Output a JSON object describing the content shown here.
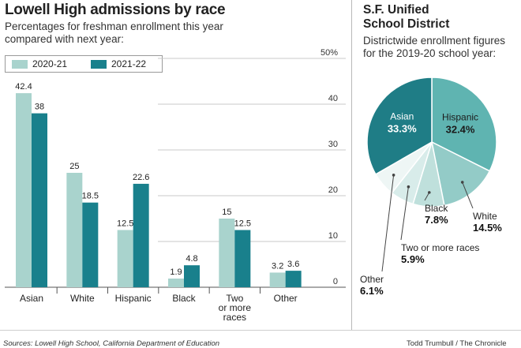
{
  "bar_chart": {
    "title": "Lowell High admissions by race",
    "subtitle_line1": "Percentages for freshman enrollment this year",
    "subtitle_line2": "compared with next year:"
  },
  "pie_chart": {
    "title_line1": "S.F. Unified",
    "title_line2": "School District",
    "subtitle_line1": "Districtwide enrollment figures",
    "subtitle_line2": "for the 2019-20 school year:"
  },
  "footer": {
    "source": "Sources: Lowell High School, California Department of Education",
    "credit": "Todd Trumbull / The Chronicle"
  },
  "colors": {
    "series_light": "#a9d3cd",
    "series_dark": "#19808c",
    "pie_asian": "#1f7d86",
    "pie_hispanic": "#5fb4b1",
    "pie_white": "#93cbc7",
    "pie_black": "#bfe0dc",
    "pie_two_or_more": "#d8ecea",
    "pie_other": "#eef6f5"
  },
  "chart_data": [
    {
      "type": "bar",
      "categories": [
        [
          "Asian"
        ],
        [
          "White"
        ],
        [
          "Hispanic"
        ],
        [
          "Black"
        ],
        [
          "Two",
          "or more",
          "races"
        ],
        [
          "Other"
        ]
      ],
      "series": [
        {
          "name": "2020-21",
          "values": [
            42.4,
            25,
            12.5,
            1.9,
            15,
            3.2
          ]
        },
        {
          "name": "2021-22",
          "values": [
            38,
            18.5,
            22.6,
            4.8,
            12.5,
            3.6
          ]
        }
      ],
      "value_labels": [
        [
          "42.4",
          "25",
          "12.5",
          "1.9",
          "15",
          "3.2"
        ],
        [
          "38",
          "18.5",
          "22.6",
          "4.8",
          "12.5",
          "3.6"
        ]
      ],
      "y_ticks": [
        "0",
        "10",
        "20",
        "30",
        "40",
        "50%"
      ],
      "ylim": [
        0,
        50
      ],
      "grid": true,
      "legend_position": "top-left"
    },
    {
      "type": "pie",
      "slices": [
        {
          "label": "Hispanic",
          "value": 32.4,
          "value_label": "32.4%"
        },
        {
          "label": "White",
          "value": 14.5,
          "value_label": "14.5%"
        },
        {
          "label": "Black",
          "value": 7.8,
          "value_label": "7.8%"
        },
        {
          "label": "Two or more races",
          "value": 5.9,
          "value_label": "5.9%"
        },
        {
          "label": "Other",
          "value": 6.1,
          "value_label": "6.1%"
        },
        {
          "label": "Asian",
          "value": 33.3,
          "value_label": "33.3%"
        }
      ]
    }
  ]
}
